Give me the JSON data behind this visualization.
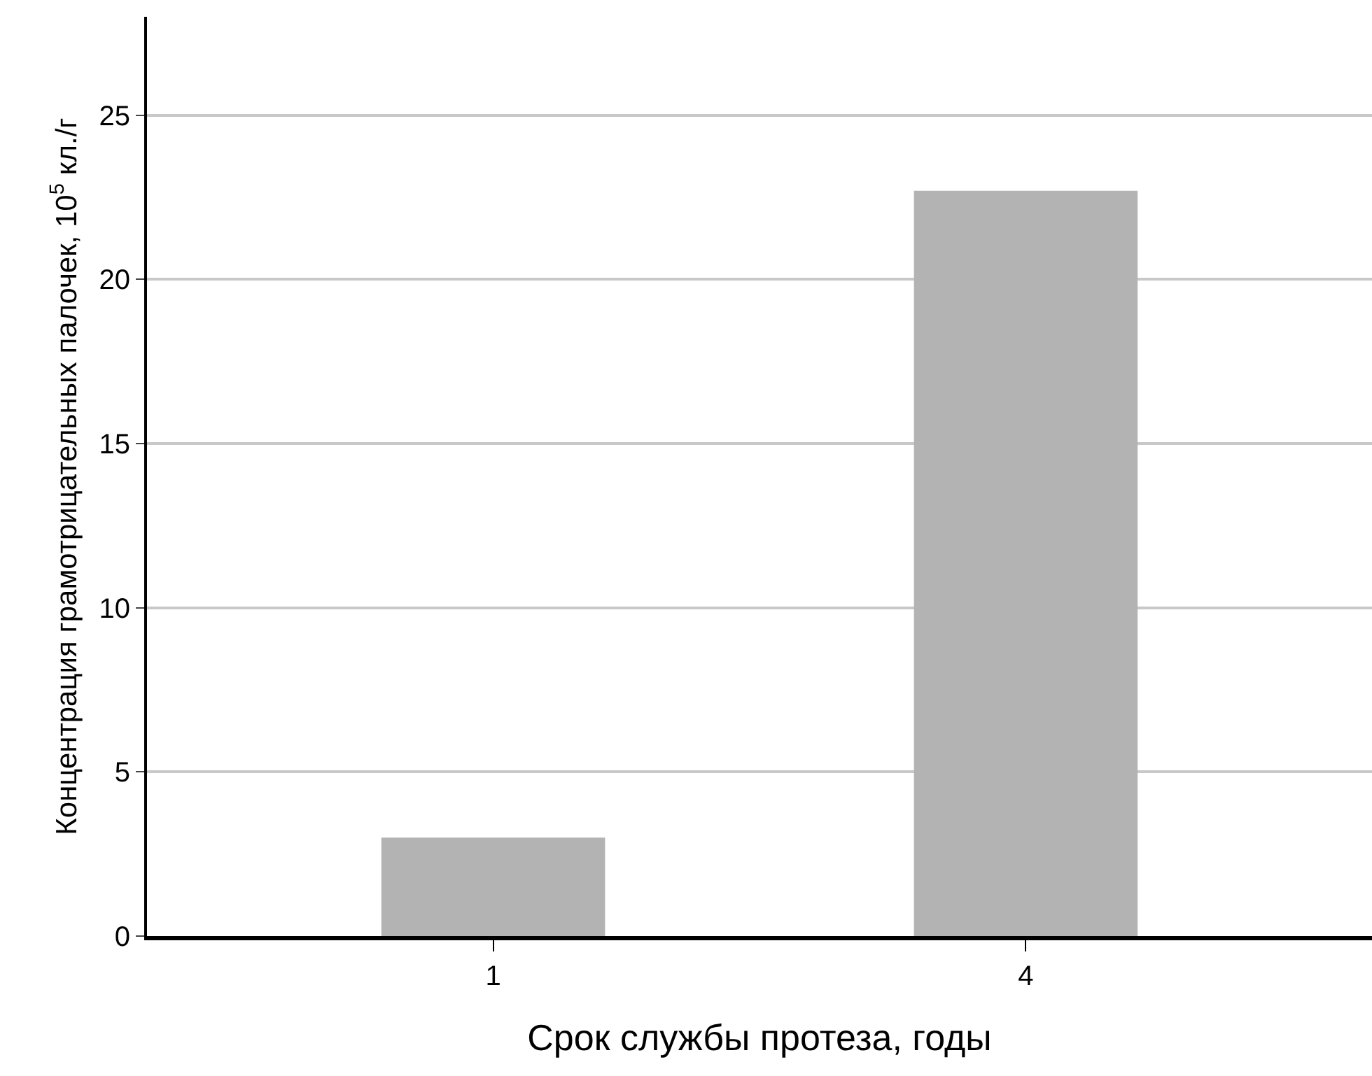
{
  "chart_data": {
    "type": "bar",
    "xlabel": "Срок службы протеза, годы",
    "ylabel": "Концентрация грамотрицательных палочек, 10$^{5}$ кл./г",
    "categories": [
      "1",
      "4"
    ],
    "values": [
      3.0,
      22.7
    ],
    "color": "#b3b3b3",
    "ylim": [
      0,
      28
    ],
    "yticks": [
      0,
      5,
      10,
      15,
      20,
      25
    ],
    "grid": "y"
  }
}
